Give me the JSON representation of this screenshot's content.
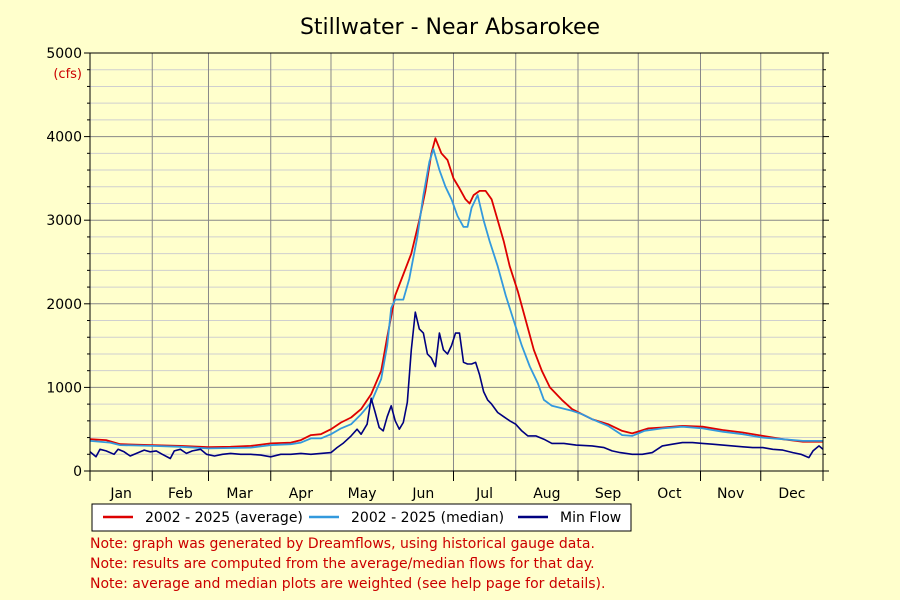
{
  "chart_data": {
    "type": "line",
    "title": "Stillwater - Near Absarokee",
    "ylabel": "(cfs)",
    "xlabel": "",
    "ylim": [
      0,
      5000
    ],
    "yticks": [
      0,
      1000,
      2000,
      3000,
      4000,
      5000
    ],
    "xlim": [
      0,
      365
    ],
    "month_labels": [
      "Jan",
      "Feb",
      "Mar",
      "Apr",
      "May",
      "Jun",
      "Jul",
      "Aug",
      "Sep",
      "Oct",
      "Nov",
      "Dec"
    ],
    "grid": true,
    "legend_position": "bottom-left",
    "series": [
      {
        "name": "2002 - 2025 (average)",
        "color": "#dd0000",
        "points": [
          [
            0,
            380
          ],
          [
            8,
            370
          ],
          [
            15,
            320
          ],
          [
            31,
            310
          ],
          [
            45,
            300
          ],
          [
            59,
            285
          ],
          [
            70,
            290
          ],
          [
            80,
            300
          ],
          [
            90,
            330
          ],
          [
            100,
            340
          ],
          [
            105,
            370
          ],
          [
            110,
            430
          ],
          [
            115,
            440
          ],
          [
            120,
            500
          ],
          [
            125,
            580
          ],
          [
            130,
            640
          ],
          [
            135,
            740
          ],
          [
            140,
            920
          ],
          [
            145,
            1200
          ],
          [
            148,
            1600
          ],
          [
            152,
            2100
          ],
          [
            156,
            2350
          ],
          [
            160,
            2600
          ],
          [
            164,
            3000
          ],
          [
            167,
            3350
          ],
          [
            170,
            3800
          ],
          [
            172,
            3980
          ],
          [
            175,
            3800
          ],
          [
            178,
            3720
          ],
          [
            181,
            3500
          ],
          [
            184,
            3380
          ],
          [
            187,
            3250
          ],
          [
            189,
            3200
          ],
          [
            191,
            3300
          ],
          [
            194,
            3350
          ],
          [
            197,
            3350
          ],
          [
            200,
            3250
          ],
          [
            203,
            3000
          ],
          [
            206,
            2750
          ],
          [
            209,
            2450
          ],
          [
            213,
            2150
          ],
          [
            217,
            1800
          ],
          [
            221,
            1450
          ],
          [
            225,
            1200
          ],
          [
            229,
            1000
          ],
          [
            235,
            850
          ],
          [
            240,
            740
          ],
          [
            245,
            680
          ],
          [
            250,
            620
          ],
          [
            258,
            560
          ],
          [
            265,
            480
          ],
          [
            270,
            450
          ],
          [
            278,
            510
          ],
          [
            285,
            520
          ],
          [
            295,
            540
          ],
          [
            305,
            530
          ],
          [
            315,
            490
          ],
          [
            325,
            460
          ],
          [
            335,
            420
          ],
          [
            345,
            380
          ],
          [
            355,
            350
          ],
          [
            365,
            350
          ]
        ]
      },
      {
        "name": "2002 - 2025 (median)",
        "color": "#3399dd",
        "points": [
          [
            0,
            360
          ],
          [
            10,
            340
          ],
          [
            15,
            310
          ],
          [
            31,
            300
          ],
          [
            45,
            290
          ],
          [
            59,
            270
          ],
          [
            70,
            275
          ],
          [
            80,
            280
          ],
          [
            90,
            310
          ],
          [
            100,
            320
          ],
          [
            105,
            340
          ],
          [
            110,
            390
          ],
          [
            115,
            390
          ],
          [
            120,
            440
          ],
          [
            125,
            510
          ],
          [
            130,
            560
          ],
          [
            135,
            680
          ],
          [
            140,
            820
          ],
          [
            145,
            1100
          ],
          [
            148,
            1500
          ],
          [
            150,
            1950
          ],
          [
            152,
            2050
          ],
          [
            156,
            2050
          ],
          [
            159,
            2300
          ],
          [
            163,
            2800
          ],
          [
            166,
            3300
          ],
          [
            169,
            3700
          ],
          [
            171,
            3850
          ],
          [
            174,
            3600
          ],
          [
            177,
            3400
          ],
          [
            180,
            3250
          ],
          [
            183,
            3050
          ],
          [
            186,
            2920
          ],
          [
            188,
            2920
          ],
          [
            190,
            3150
          ],
          [
            193,
            3300
          ],
          [
            196,
            3000
          ],
          [
            199,
            2750
          ],
          [
            203,
            2450
          ],
          [
            207,
            2100
          ],
          [
            211,
            1800
          ],
          [
            215,
            1500
          ],
          [
            219,
            1250
          ],
          [
            223,
            1050
          ],
          [
            226,
            850
          ],
          [
            230,
            780
          ],
          [
            235,
            750
          ],
          [
            240,
            720
          ],
          [
            245,
            680
          ],
          [
            250,
            620
          ],
          [
            258,
            540
          ],
          [
            265,
            430
          ],
          [
            270,
            420
          ],
          [
            276,
            480
          ],
          [
            285,
            510
          ],
          [
            295,
            530
          ],
          [
            305,
            510
          ],
          [
            315,
            470
          ],
          [
            325,
            440
          ],
          [
            335,
            400
          ],
          [
            345,
            380
          ],
          [
            355,
            360
          ],
          [
            365,
            360
          ]
        ]
      },
      {
        "name": "Min Flow",
        "color": "#000080",
        "points": [
          [
            0,
            230
          ],
          [
            3,
            170
          ],
          [
            5,
            260
          ],
          [
            8,
            240
          ],
          [
            12,
            200
          ],
          [
            14,
            260
          ],
          [
            17,
            230
          ],
          [
            20,
            180
          ],
          [
            24,
            220
          ],
          [
            27,
            250
          ],
          [
            30,
            230
          ],
          [
            33,
            240
          ],
          [
            36,
            200
          ],
          [
            40,
            150
          ],
          [
            42,
            240
          ],
          [
            45,
            260
          ],
          [
            48,
            210
          ],
          [
            51,
            240
          ],
          [
            55,
            260
          ],
          [
            58,
            200
          ],
          [
            62,
            180
          ],
          [
            66,
            200
          ],
          [
            70,
            210
          ],
          [
            75,
            200
          ],
          [
            80,
            200
          ],
          [
            85,
            190
          ],
          [
            90,
            170
          ],
          [
            95,
            200
          ],
          [
            100,
            200
          ],
          [
            105,
            210
          ],
          [
            110,
            200
          ],
          [
            115,
            210
          ],
          [
            120,
            220
          ],
          [
            123,
            280
          ],
          [
            126,
            330
          ],
          [
            130,
            420
          ],
          [
            133,
            500
          ],
          [
            135,
            440
          ],
          [
            138,
            560
          ],
          [
            140,
            870
          ],
          [
            142,
            700
          ],
          [
            144,
            520
          ],
          [
            146,
            480
          ],
          [
            148,
            650
          ],
          [
            150,
            780
          ],
          [
            152,
            600
          ],
          [
            154,
            500
          ],
          [
            156,
            580
          ],
          [
            158,
            820
          ],
          [
            160,
            1450
          ],
          [
            162,
            1900
          ],
          [
            164,
            1700
          ],
          [
            166,
            1650
          ],
          [
            168,
            1400
          ],
          [
            170,
            1350
          ],
          [
            172,
            1250
          ],
          [
            174,
            1650
          ],
          [
            176,
            1450
          ],
          [
            178,
            1400
          ],
          [
            180,
            1500
          ],
          [
            182,
            1650
          ],
          [
            184,
            1650
          ],
          [
            186,
            1300
          ],
          [
            188,
            1280
          ],
          [
            190,
            1280
          ],
          [
            192,
            1300
          ],
          [
            194,
            1150
          ],
          [
            196,
            950
          ],
          [
            198,
            850
          ],
          [
            200,
            800
          ],
          [
            203,
            700
          ],
          [
            206,
            650
          ],
          [
            209,
            600
          ],
          [
            212,
            560
          ],
          [
            215,
            480
          ],
          [
            218,
            420
          ],
          [
            222,
            420
          ],
          [
            226,
            380
          ],
          [
            230,
            330
          ],
          [
            236,
            330
          ],
          [
            242,
            310
          ],
          [
            250,
            300
          ],
          [
            256,
            280
          ],
          [
            260,
            240
          ],
          [
            264,
            220
          ],
          [
            270,
            200
          ],
          [
            275,
            200
          ],
          [
            280,
            220
          ],
          [
            285,
            300
          ],
          [
            290,
            320
          ],
          [
            295,
            340
          ],
          [
            300,
            340
          ],
          [
            305,
            330
          ],
          [
            310,
            320
          ],
          [
            315,
            310
          ],
          [
            320,
            300
          ],
          [
            325,
            290
          ],
          [
            330,
            280
          ],
          [
            335,
            280
          ],
          [
            340,
            260
          ],
          [
            345,
            250
          ],
          [
            350,
            220
          ],
          [
            354,
            200
          ],
          [
            358,
            160
          ],
          [
            360,
            240
          ],
          [
            363,
            300
          ],
          [
            365,
            260
          ]
        ]
      }
    ],
    "notes": [
      "Note: graph was generated by Dreamflows, using historical gauge data.",
      "Note: results are computed from the average/median flows for that day.",
      "Note: average and median plots are weighted (see help page for details)."
    ]
  }
}
